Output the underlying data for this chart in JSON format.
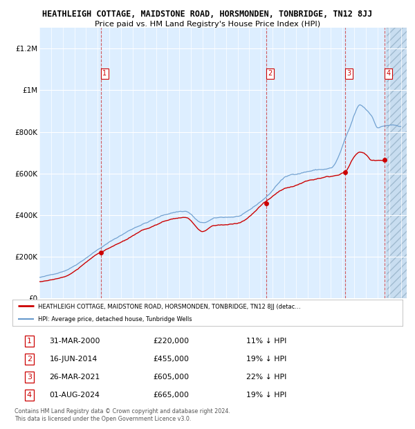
{
  "title": "HEATHLEIGH COTTAGE, MAIDSTONE ROAD, HORSMONDEN, TONBRIDGE, TN12 8JJ",
  "subtitle": "Price paid vs. HM Land Registry's House Price Index (HPI)",
  "xlim_start": 1995.0,
  "xlim_end": 2026.5,
  "ylim": [
    0,
    1300000
  ],
  "yticks": [
    0,
    200000,
    400000,
    600000,
    800000,
    1000000,
    1200000
  ],
  "ytick_labels": [
    "£0",
    "£200K",
    "£400K",
    "£600K",
    "£800K",
    "£1M",
    "£1.2M"
  ],
  "background_color": "#ffffff",
  "plot_bg_color": "#ddeeff",
  "red_line_color": "#cc0000",
  "blue_line_color": "#6699cc",
  "purchases": [
    {
      "year": 2000.25,
      "price": 220000,
      "label": "1"
    },
    {
      "year": 2014.46,
      "price": 455000,
      "label": "2"
    },
    {
      "year": 2021.23,
      "price": 605000,
      "label": "3"
    },
    {
      "year": 2024.58,
      "price": 665000,
      "label": "4"
    }
  ],
  "table_data": [
    [
      "1",
      "31-MAR-2000",
      "£220,000",
      "11% ↓ HPI"
    ],
    [
      "2",
      "16-JUN-2014",
      "£455,000",
      "19% ↓ HPI"
    ],
    [
      "3",
      "26-MAR-2021",
      "£605,000",
      "22% ↓ HPI"
    ],
    [
      "4",
      "01-AUG-2024",
      "£665,000",
      "19% ↓ HPI"
    ]
  ],
  "legend_red": "HEATHLEIGH COTTAGE, MAIDSTONE ROAD, HORSMONDEN, TONBRIDGE, TN12 8JJ (detac…",
  "legend_blue": "HPI: Average price, detached house, Tunbridge Wells",
  "footnote": "Contains HM Land Registry data © Crown copyright and database right 2024.\nThis data is licensed under the Open Government Licence v3.0.",
  "hpi_start_year": 1995.0,
  "hpi_end_year": 2026.0,
  "sale_end_year": 2024.67,
  "hatch_start": 2024.75
}
